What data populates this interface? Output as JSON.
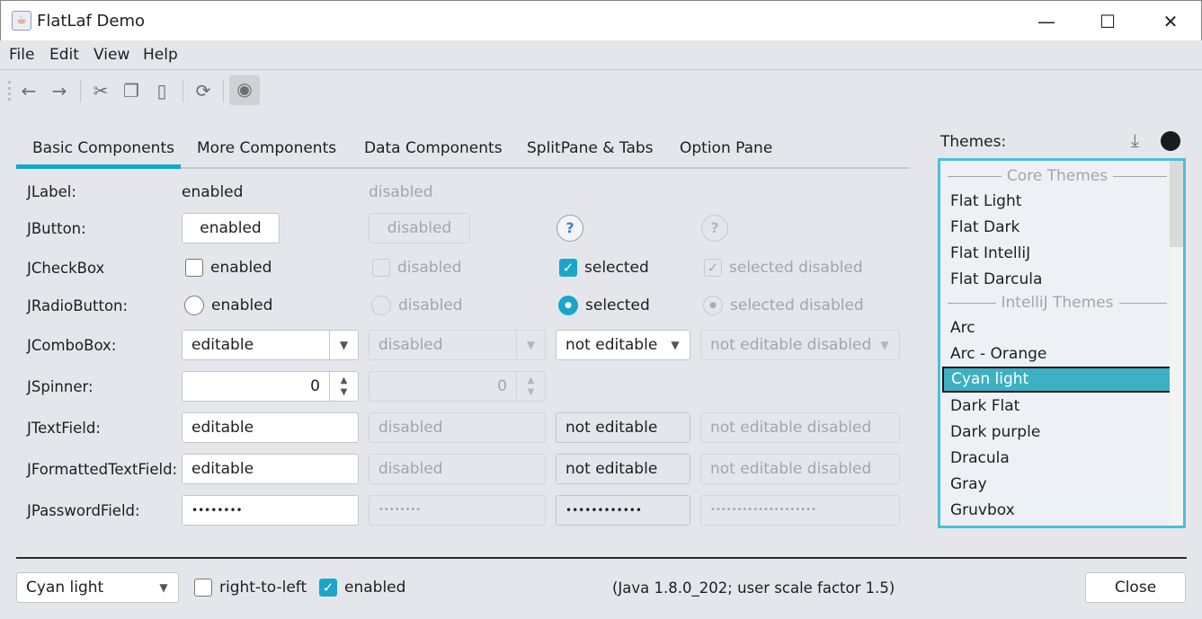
{
  "window": {
    "title": "FlatLaf Demo",
    "minimize": "—",
    "maximize": "☐",
    "close": "✕"
  },
  "menu": [
    "File",
    "Edit",
    "View",
    "Help"
  ],
  "toolbar": {
    "icons": [
      "arrow-left-icon",
      "arrow-right-icon",
      "cut-icon",
      "copy-icon",
      "paste-icon",
      "refresh-icon",
      "eye-icon"
    ]
  },
  "tabs": [
    "Basic Components",
    "More Components",
    "Data Components",
    "SplitPane & Tabs",
    "Option Pane"
  ],
  "selected_tab": "Basic Components",
  "rows": {
    "labels": [
      "JLabel:",
      "JButton:",
      "JCheckBox",
      "JRadioButton:",
      "JComboBox:",
      "JSpinner:",
      "JTextField:",
      "JFormattedTextField:",
      "JPasswordField:"
    ],
    "label": {
      "enabled": "enabled",
      "disabled": "disabled"
    },
    "button": {
      "enabled": "enabled",
      "disabled": "disabled",
      "help": "?"
    },
    "checkbox": {
      "enabled": "enabled",
      "disabled": "disabled",
      "selected": "selected",
      "selected_disabled": "selected disabled"
    },
    "radio": {
      "enabled": "enabled",
      "disabled": "disabled",
      "selected": "selected",
      "selected_disabled": "selected disabled"
    },
    "combo": {
      "editable": "editable",
      "disabled": "disabled",
      "not_editable": "not editable",
      "not_editable_disabled": "not editable disabled"
    },
    "spinner": {
      "enabled": "0",
      "disabled": "0"
    },
    "textfield": {
      "editable": "editable",
      "disabled": "disabled",
      "not_editable": "not editable",
      "not_editable_disabled": "not editable disabled"
    },
    "formatted": {
      "editable": "editable",
      "disabled": "disabled",
      "not_editable": "not editable",
      "not_editable_disabled": "not editable disabled"
    },
    "password": {
      "editable": "••••••••",
      "disabled": "••••••••",
      "not_editable": "••••••••••••",
      "not_editable_disabled": "••••••••••••••••••••"
    }
  },
  "themes": {
    "label": "Themes:",
    "groups": [
      "Core Themes",
      "IntelliJ Themes"
    ],
    "core": [
      "Flat Light",
      "Flat Dark",
      "Flat IntelliJ",
      "Flat Darcula"
    ],
    "intellij": [
      "Arc",
      "Arc - Orange",
      "Cyan light",
      "Dark Flat",
      "Dark purple",
      "Dracula",
      "Gray",
      "Gruvbox"
    ],
    "selected": "Cyan light"
  },
  "bottom": {
    "theme_combo": "Cyan light",
    "rtl": "right-to-left",
    "rtl_checked": false,
    "enabled": "enabled",
    "enabled_checked": true,
    "info": "(Java 1.8.0_202;  user scale factor 1.5)",
    "close": "Close"
  },
  "colors": {
    "accent": "#12a8cf",
    "selection": "#3db0c4"
  }
}
